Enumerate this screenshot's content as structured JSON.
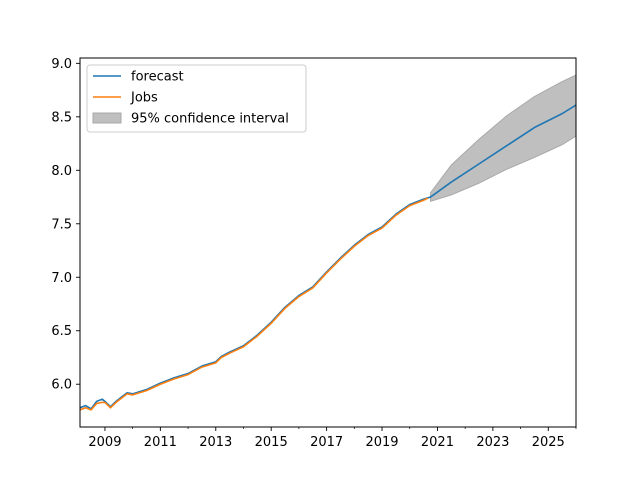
{
  "chart_data": {
    "type": "line",
    "xlim": [
      2008.1,
      2026.0
    ],
    "ylim": [
      5.6,
      9.05
    ],
    "x_ticks": [
      2009,
      2011,
      2013,
      2015,
      2017,
      2019,
      2021,
      2023,
      2025
    ],
    "y_ticks": [
      6.0,
      6.5,
      7.0,
      7.5,
      8.0,
      8.5,
      9.0
    ],
    "x_tick_labels": [
      "2009",
      "2011",
      "2013",
      "2015",
      "2017",
      "2019",
      "2021",
      "2023",
      "2025"
    ],
    "y_tick_labels": [
      "6.0",
      "6.5",
      "7.0",
      "7.5",
      "8.0",
      "8.5",
      "9.0"
    ],
    "legend_position": "top-left",
    "series": [
      {
        "name": "forecast",
        "color": "#1f77b4",
        "x": [
          2008.1,
          2008.3,
          2008.5,
          2008.7,
          2008.9,
          2009.0,
          2009.2,
          2009.4,
          2009.6,
          2009.8,
          2010.0,
          2010.5,
          2011.0,
          2011.5,
          2012.0,
          2012.5,
          2013.0,
          2013.2,
          2013.5,
          2014.0,
          2014.5,
          2015.0,
          2015.5,
          2016.0,
          2016.5,
          2017.0,
          2017.5,
          2018.0,
          2018.5,
          2019.0,
          2019.5,
          2020.0,
          2020.5,
          2020.75,
          2021.5,
          2022.5,
          2023.5,
          2024.5,
          2025.5,
          2026.0
        ],
        "y": [
          5.78,
          5.8,
          5.77,
          5.84,
          5.86,
          5.84,
          5.79,
          5.84,
          5.88,
          5.92,
          5.91,
          5.95,
          6.01,
          6.06,
          6.1,
          6.17,
          6.21,
          6.26,
          6.3,
          6.36,
          6.46,
          6.58,
          6.72,
          6.83,
          6.91,
          7.05,
          7.18,
          7.3,
          7.4,
          7.47,
          7.59,
          7.68,
          7.73,
          7.75,
          7.89,
          8.06,
          8.23,
          8.4,
          8.53,
          8.61
        ]
      },
      {
        "name": "Jobs",
        "color": "#ff7f0e",
        "x": [
          2008.1,
          2008.3,
          2008.5,
          2008.7,
          2008.9,
          2009.0,
          2009.2,
          2009.4,
          2009.6,
          2009.8,
          2010.0,
          2010.5,
          2011.0,
          2011.5,
          2012.0,
          2012.5,
          2013.0,
          2013.2,
          2013.5,
          2014.0,
          2014.5,
          2015.0,
          2015.5,
          2016.0,
          2016.5,
          2017.0,
          2017.5,
          2018.0,
          2018.5,
          2019.0,
          2019.5,
          2020.0,
          2020.5,
          2020.65
        ],
        "y": [
          5.76,
          5.78,
          5.76,
          5.82,
          5.83,
          5.83,
          5.78,
          5.83,
          5.87,
          5.91,
          5.9,
          5.94,
          6.0,
          6.05,
          6.09,
          6.16,
          6.2,
          6.25,
          6.29,
          6.35,
          6.45,
          6.57,
          6.71,
          6.82,
          6.9,
          7.04,
          7.17,
          7.29,
          7.39,
          7.46,
          7.58,
          7.67,
          7.72,
          7.74
        ]
      }
    ],
    "confidence_interval": {
      "name": "95% confidence interval",
      "color": "#bfbfbf",
      "x": [
        2020.75,
        2021.5,
        2022.5,
        2023.5,
        2024.5,
        2025.5,
        2026.0
      ],
      "upper": [
        7.79,
        8.05,
        8.29,
        8.51,
        8.69,
        8.83,
        8.89
      ],
      "lower": [
        7.71,
        7.77,
        7.88,
        8.01,
        8.12,
        8.24,
        8.32
      ]
    }
  }
}
